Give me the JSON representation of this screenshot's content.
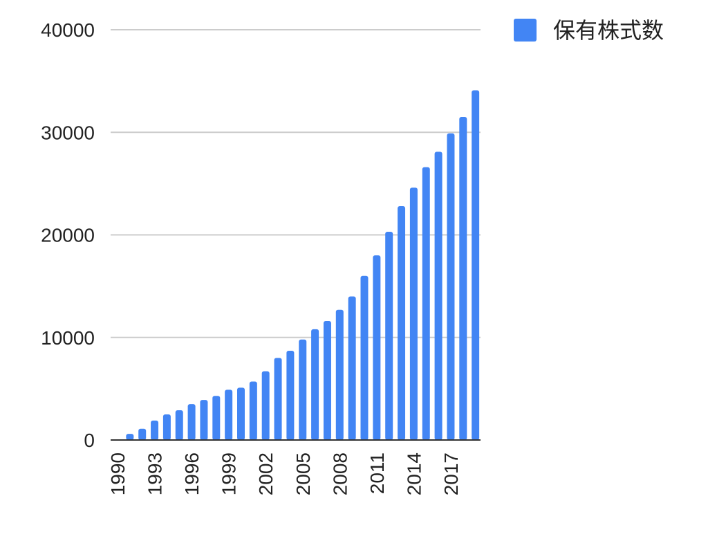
{
  "chart_data": {
    "type": "bar",
    "categories": [
      "1990",
      "1991",
      "1992",
      "1993",
      "1994",
      "1995",
      "1996",
      "1997",
      "1998",
      "1999",
      "2000",
      "2001",
      "2002",
      "2003",
      "2004",
      "2005",
      "2006",
      "2007",
      "2008",
      "2009",
      "2010",
      "2011",
      "2012",
      "2013",
      "2014",
      "2015",
      "2016",
      "2017",
      "2018",
      "2019"
    ],
    "x_tick_labels": [
      "1990",
      "1993",
      "1996",
      "1999",
      "2002",
      "2005",
      "2008",
      "2011",
      "2014",
      "2017"
    ],
    "series": [
      {
        "name": "保有株式数",
        "color": "#4285F4",
        "values": [
          0,
          600,
          1100,
          1900,
          2500,
          2900,
          3500,
          3900,
          4300,
          4900,
          5100,
          5700,
          6700,
          8000,
          8700,
          9800,
          10800,
          11600,
          12700,
          14000,
          16000,
          18000,
          20300,
          22800,
          24600,
          26600,
          28100,
          29900,
          31500,
          34100
        ]
      }
    ],
    "ylim": [
      0,
      40000
    ],
    "y_ticks": [
      "0",
      "10000",
      "20000",
      "30000",
      "40000"
    ],
    "grid": true,
    "legend_position": "top-right",
    "title": "",
    "xlabel": "",
    "ylabel": ""
  }
}
